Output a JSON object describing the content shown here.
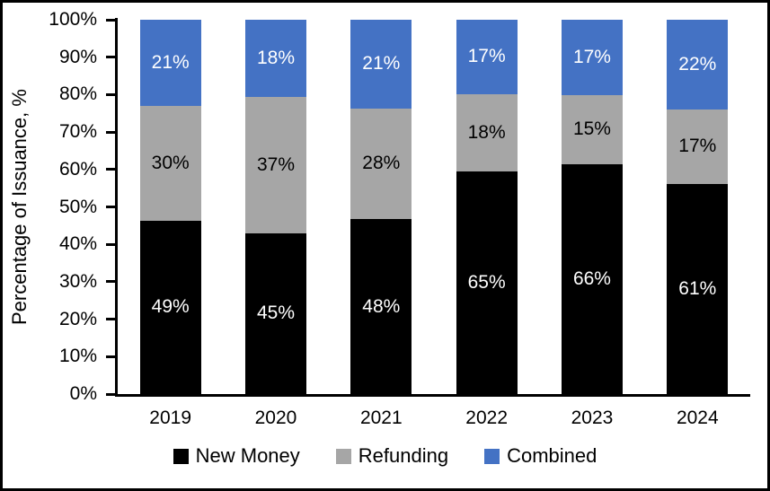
{
  "chart_data": {
    "type": "bar",
    "stacked": true,
    "percent_stacked": true,
    "title": "",
    "xlabel": "",
    "ylabel": "Percentage of Issuance, %",
    "categories": [
      "2019",
      "2020",
      "2021",
      "2022",
      "2023",
      "2024"
    ],
    "series": [
      {
        "name": "New Money",
        "color": "#000000",
        "label_color": "#ffffff",
        "values": [
          49,
          45,
          48,
          65,
          66,
          61
        ]
      },
      {
        "name": "Refunding",
        "color": "#a6a6a6",
        "label_color": "#000000",
        "values": [
          30,
          37,
          28,
          18,
          15,
          17
        ]
      },
      {
        "name": "Combined",
        "color": "#4472c4",
        "label_color": "#ffffff",
        "values": [
          21,
          18,
          21,
          17,
          17,
          22
        ]
      }
    ],
    "data_label_suffix": "%",
    "y_ticks": [
      "0%",
      "10%",
      "20%",
      "30%",
      "40%",
      "50%",
      "60%",
      "70%",
      "80%",
      "90%",
      "100%"
    ],
    "ylim": [
      0,
      100
    ],
    "grid": false,
    "legend_position": "bottom"
  },
  "colors": {
    "background": "#ffffff",
    "frame_border": "#000000",
    "axis": "#000000"
  }
}
